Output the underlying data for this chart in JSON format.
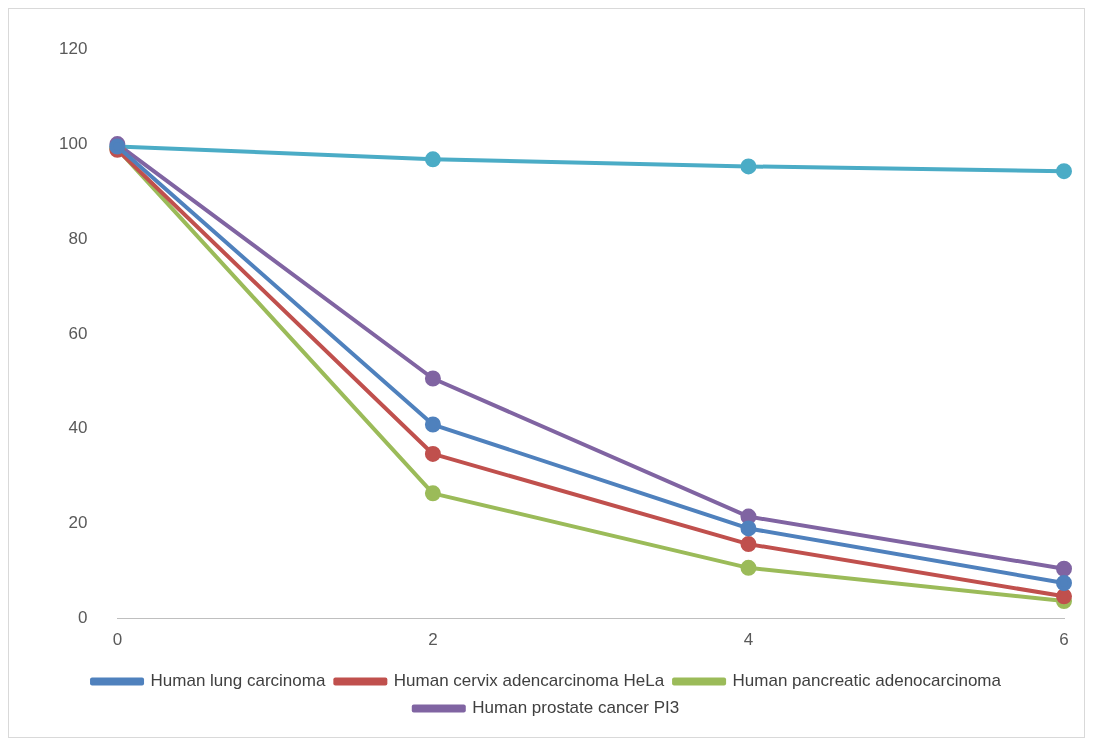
{
  "chart_data": {
    "type": "line",
    "categories": [
      "0",
      "2",
      "4",
      "6"
    ],
    "series": [
      {
        "name": "Human lung carcinoma",
        "color": "#4f81bd",
        "values": [
          99.5,
          40.9,
          19,
          7.5
        ]
      },
      {
        "name": "Human cervix adencarcinoma HeLa",
        "color": "#c0504d",
        "values": [
          98.8,
          34.7,
          15.7,
          4.7
        ]
      },
      {
        "name": "Human pancreatic adenocarcinoma",
        "color": "#9bbb59",
        "values": [
          99,
          26.4,
          10.7,
          3.7
        ]
      },
      {
        "name": "Human prostate cancer PI3",
        "color": "#8064a2",
        "values": [
          100,
          50.6,
          21.5,
          10.5
        ]
      },
      {
        "color": "#4bacc6",
        "values": [
          99.5,
          96.8,
          95.3,
          94.3
        ]
      }
    ],
    "ylim": [
      0,
      120
    ],
    "yticks": [
      0,
      20,
      40,
      60,
      80,
      100,
      120
    ],
    "legend": "bottom",
    "marker": "circle"
  }
}
